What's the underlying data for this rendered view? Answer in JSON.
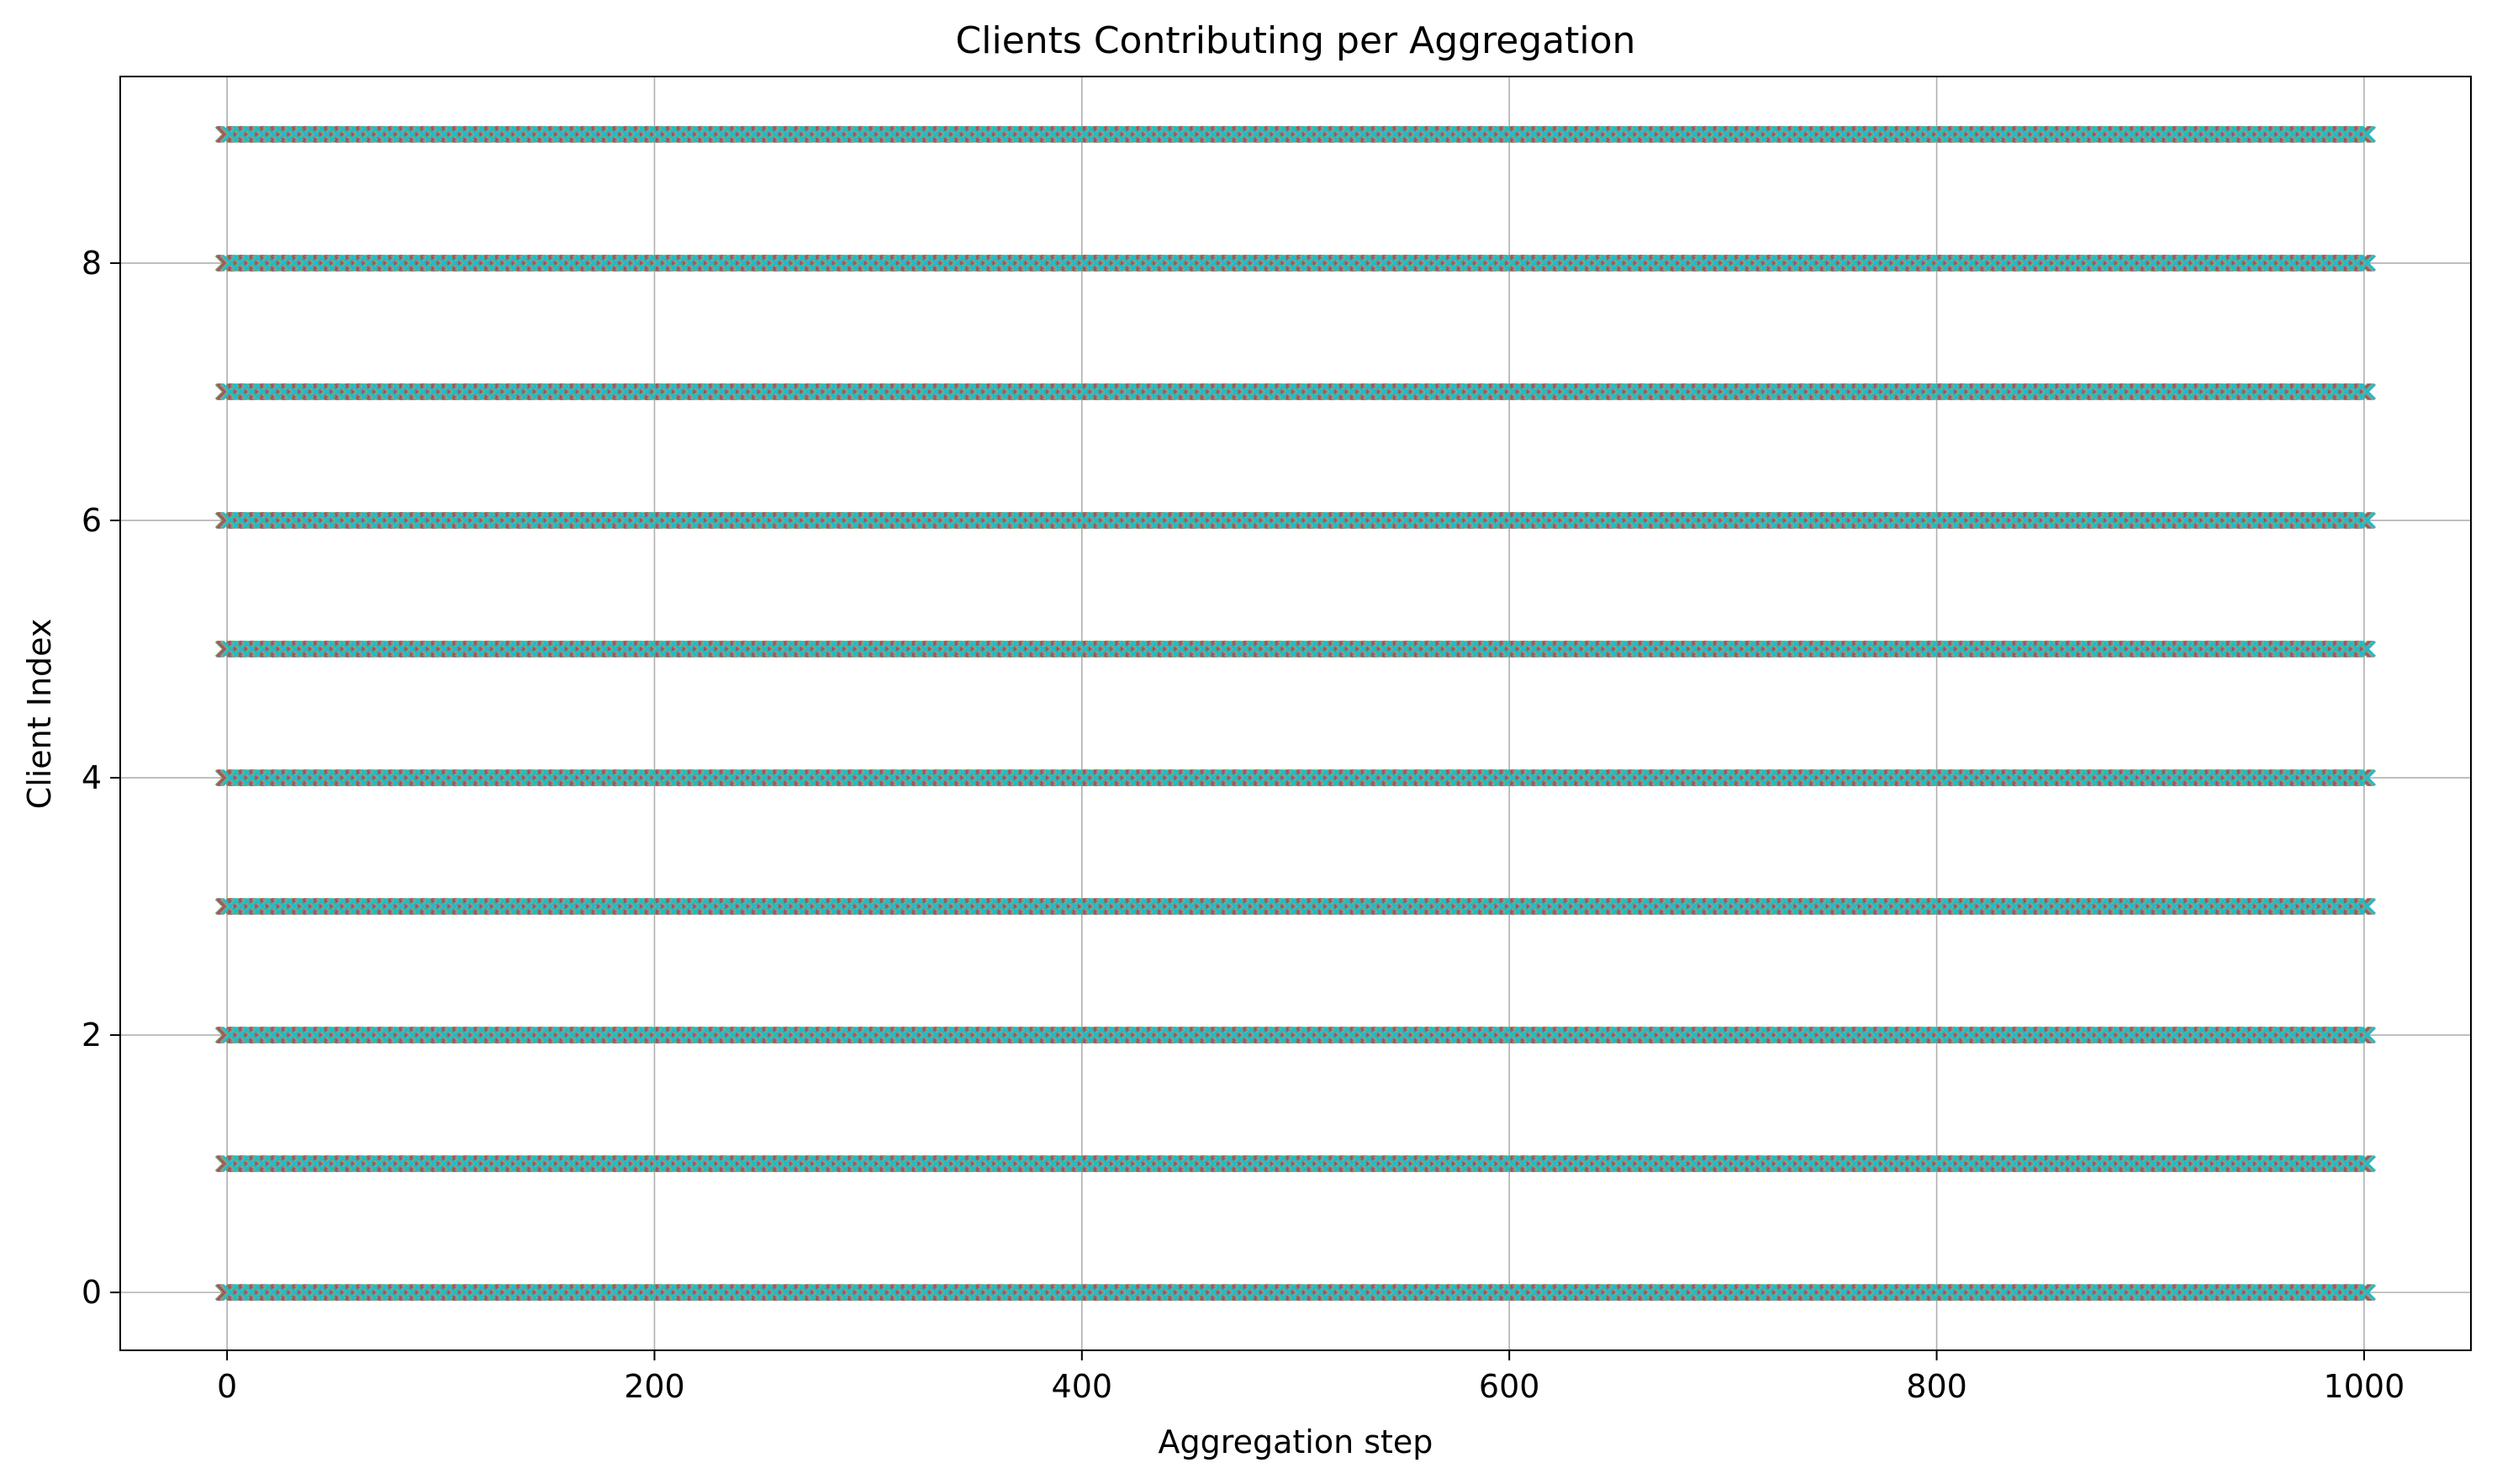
{
  "chart_data": {
    "type": "scatter",
    "title": "Clients Contributing per Aggregation",
    "xlabel": "Aggregation step",
    "ylabel": "Client Index",
    "xlim": [
      -50,
      1050
    ],
    "ylim": [
      -0.45,
      9.45
    ],
    "xticks": [
      0,
      200,
      400,
      600,
      800,
      1000
    ],
    "yticks": [
      0,
      2,
      4,
      6,
      8
    ],
    "grid": true,
    "marker": "x",
    "x_range": [
      0,
      1000
    ],
    "x_step": 5,
    "clients": [
      0,
      1,
      2,
      3,
      4,
      5,
      6,
      7,
      8,
      9
    ],
    "series_colors": [
      "#1f77b4",
      "#ff7f0e",
      "#2ca02c",
      "#d62728",
      "#9467bd",
      "#8c564b",
      "#e377c2",
      "#7f7f7f",
      "#bcbd22",
      "#17becf"
    ]
  }
}
